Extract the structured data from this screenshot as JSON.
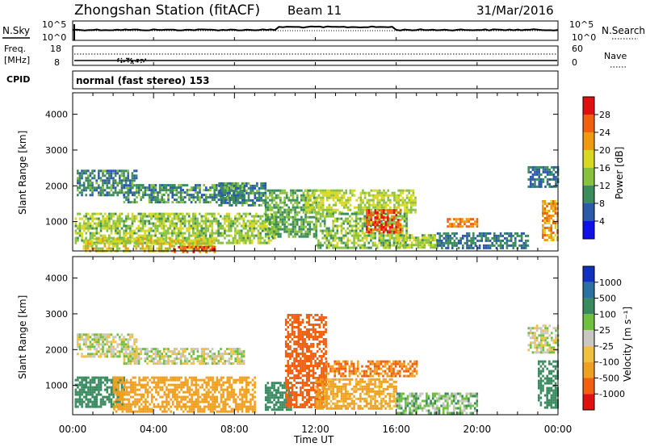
{
  "header": {
    "station_title": "Zhongshan Station (fitACF)",
    "beam": "Beam 11",
    "date": "31/Mar/2016"
  },
  "noise_panel": {
    "left_label": "N.Sky",
    "right_label": "N.Search",
    "tick_top": "10^5",
    "tick_bottom": "10^0",
    "right_tick_top": "10^5",
    "right_tick_bottom": "10^0"
  },
  "freq_panel": {
    "left_label_1": "Freq.",
    "left_label_2": "[MHz]",
    "left_tick_top": "18",
    "left_tick_bottom": "8",
    "right_label": "Nave",
    "right_tick_top": "60",
    "right_tick_bottom": "0"
  },
  "cpid_panel": {
    "label": "CPID",
    "text": "normal (fast stereo) 153"
  },
  "x_axis": {
    "title": "Time UT",
    "ticks": [
      "00:00",
      "04:00",
      "08:00",
      "12:00",
      "16:00",
      "20:00",
      "00:00"
    ]
  },
  "colorbar_power": {
    "title": "Power [dB]",
    "labels": [
      "28",
      "24",
      "20",
      "16",
      "12",
      "8",
      "4"
    ],
    "colors": [
      "#e01010",
      "#f06010",
      "#f09a10",
      "#d8d820",
      "#88c040",
      "#3a8c5a",
      "#2a5aa8",
      "#1010e8"
    ]
  },
  "colorbar_velocity": {
    "title": "Velocity [m s⁻¹]",
    "labels": [
      "1000",
      "500",
      "100",
      "25",
      "-25",
      "-100",
      "-500",
      "-1000"
    ],
    "colors": [
      "#1030c0",
      "#2a70a0",
      "#3a8a60",
      "#70c040",
      "#c8c8c0",
      "#f0c040",
      "#f0a020",
      "#f06010",
      "#e01010"
    ]
  },
  "chart_data": [
    {
      "type": "heatmap",
      "title": "Power",
      "xlabel": "Time UT",
      "ylabel": "Slant Range [km]",
      "x_ticks": [
        "00:00",
        "04:00",
        "08:00",
        "12:00",
        "16:00",
        "20:00",
        "00:00"
      ],
      "y_ticks": [
        1000,
        2000,
        3000,
        4000
      ],
      "xlim_hours": [
        0,
        24
      ],
      "ylim_km": [
        180,
        4600
      ],
      "colorbar_ticks_db": [
        4,
        8,
        12,
        16,
        20,
        24,
        28
      ],
      "regions": [
        {
          "t0": 0.2,
          "t1": 3.2,
          "r0": 1750,
          "r1": 2450,
          "db": 9
        },
        {
          "t0": 2.5,
          "t1": 8.5,
          "r0": 1550,
          "r1": 2050,
          "db": 10
        },
        {
          "t0": 0.1,
          "t1": 10,
          "r0": 400,
          "r1": 1250,
          "db": 15
        },
        {
          "t0": 0.5,
          "t1": 7,
          "r0": 180,
          "r1": 550,
          "db": 18
        },
        {
          "t0": 5,
          "t1": 7,
          "r0": 180,
          "r1": 320,
          "db": 26
        },
        {
          "t0": 7.2,
          "t1": 9.5,
          "r0": 1450,
          "r1": 2100,
          "db": 9
        },
        {
          "t0": 9.5,
          "t1": 12,
          "r0": 600,
          "r1": 1900,
          "db": 12
        },
        {
          "t0": 11.5,
          "t1": 17,
          "r0": 1250,
          "r1": 1900,
          "db": 16
        },
        {
          "t0": 12,
          "t1": 16.5,
          "r0": 300,
          "r1": 1250,
          "db": 14
        },
        {
          "t0": 14.5,
          "t1": 16.2,
          "r0": 700,
          "r1": 1350,
          "db": 27
        },
        {
          "t0": 16,
          "t1": 18,
          "r0": 250,
          "r1": 650,
          "db": 15
        },
        {
          "t0": 18.5,
          "t1": 20,
          "r0": 850,
          "r1": 1100,
          "db": 24
        },
        {
          "t0": 18,
          "t1": 22.5,
          "r0": 250,
          "r1": 700,
          "db": 8
        },
        {
          "t0": 22.5,
          "t1": 24,
          "r0": 1950,
          "r1": 2550,
          "db": 8
        },
        {
          "t0": 23.2,
          "t1": 24,
          "r0": 500,
          "r1": 1600,
          "db": 22
        }
      ]
    },
    {
      "type": "heatmap",
      "title": "Velocity",
      "xlabel": "Time UT",
      "ylabel": "Slant Range [km]",
      "x_ticks": [
        "00:00",
        "04:00",
        "08:00",
        "12:00",
        "16:00",
        "20:00",
        "00:00"
      ],
      "y_ticks": [
        1000,
        2000,
        3000,
        4000
      ],
      "xlim_hours": [
        0,
        24
      ],
      "ylim_km": [
        180,
        4600
      ],
      "colorbar_ticks_ms": [
        1000,
        500,
        100,
        25,
        -25,
        -100,
        -500,
        -1000
      ],
      "regions": [
        {
          "t0": 0.2,
          "t1": 3.2,
          "r0": 1800,
          "r1": 2450,
          "v": 0
        },
        {
          "t0": 2.5,
          "t1": 8.5,
          "r0": 1600,
          "r1": 2050,
          "v": 0
        },
        {
          "t0": 0.1,
          "t1": 2.5,
          "r0": 400,
          "r1": 1250,
          "v": 300
        },
        {
          "t0": 2,
          "t1": 9,
          "r0": 250,
          "r1": 1250,
          "v": -400
        },
        {
          "t0": 9.5,
          "t1": 10.8,
          "r0": 300,
          "r1": 1100,
          "v": 200
        },
        {
          "t0": 10.5,
          "t1": 12.5,
          "r0": 400,
          "r1": 3000,
          "v": -900
        },
        {
          "t0": 12.5,
          "t1": 17,
          "r0": 1250,
          "r1": 1700,
          "v": -500
        },
        {
          "t0": 12,
          "t1": 16,
          "r0": 350,
          "r1": 1200,
          "v": -150
        },
        {
          "t0": 16,
          "t1": 20,
          "r0": 250,
          "r1": 800,
          "v": 60
        },
        {
          "t0": 22.5,
          "t1": 24,
          "r0": 1950,
          "r1": 2700,
          "v": 0
        },
        {
          "t0": 23,
          "t1": 24,
          "r0": 400,
          "r1": 1700,
          "v": 400
        }
      ]
    }
  ]
}
